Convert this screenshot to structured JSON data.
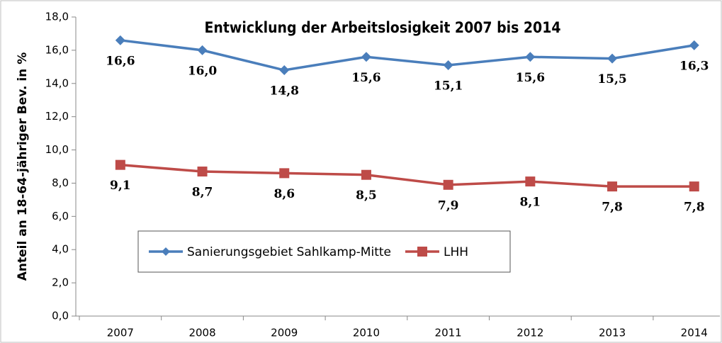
{
  "chart_data": {
    "type": "line",
    "title": "Entwicklung der Arbeitslosigkeit 2007 bis 2014",
    "y_label": "Anteil an 18-64-jähriger Bev. in %",
    "categories": [
      "2007",
      "2008",
      "2009",
      "2010",
      "2011",
      "2012",
      "2013",
      "2014"
    ],
    "series": [
      {
        "name": "Sanierungsgebiet Sahlkamp-Mitte",
        "color": "#4a7ebb",
        "marker": "diamond",
        "values": [
          16.6,
          16.0,
          14.8,
          15.6,
          15.1,
          15.6,
          15.5,
          16.3
        ],
        "value_labels": [
          "16,6",
          "16,0",
          "14,8",
          "15,6",
          "15,1",
          "15,6",
          "15,5",
          "16,3"
        ]
      },
      {
        "name": "LHH",
        "color": "#be4b48",
        "marker": "square",
        "values": [
          9.1,
          8.7,
          8.6,
          8.5,
          7.9,
          8.1,
          7.8,
          7.8
        ],
        "value_labels": [
          "9,1",
          "8,7",
          "8,6",
          "8,5",
          "7,9",
          "8,1",
          "7,8",
          "7,8"
        ]
      }
    ],
    "ylim": [
      0,
      18
    ],
    "yticks": [
      {
        "value": 0,
        "label": "0,0"
      },
      {
        "value": 2,
        "label": "2,0"
      },
      {
        "value": 4,
        "label": "4,0"
      },
      {
        "value": 6,
        "label": "6,0"
      },
      {
        "value": 8,
        "label": "8,0"
      },
      {
        "value": 10,
        "label": "10,0"
      },
      {
        "value": 12,
        "label": "12,0"
      },
      {
        "value": 14,
        "label": "14,0"
      },
      {
        "value": 16,
        "label": "16,0"
      },
      {
        "value": 18,
        "label": "18,0"
      }
    ],
    "grid": false
  }
}
